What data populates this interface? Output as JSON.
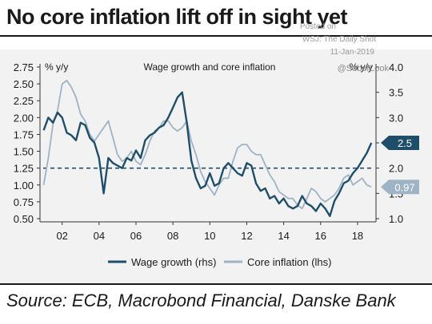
{
  "header": {
    "title": "No core inflation lift off in sight yet",
    "watermark_posted": "Posted on",
    "watermark_source": "WSJ: The Daily Shot",
    "watermark_date": "11-Jan-2019",
    "watermark_handle": "@SoberLook"
  },
  "footer": {
    "source": "Source: ECB, Macrobond Financial, Danske Bank"
  },
  "chart_data": {
    "type": "line",
    "title": "Wage growth and core inflation",
    "left_axis": {
      "label": "% y/y",
      "range": [
        0.5,
        2.75
      ],
      "ticks": [
        "0.50",
        "0.75",
        "1.00",
        "1.25",
        "1.50",
        "1.75",
        "2.00",
        "2.25",
        "2.50",
        "2.75"
      ],
      "tick_values": [
        0.5,
        0.75,
        1.0,
        1.25,
        1.5,
        1.75,
        2.0,
        2.25,
        2.5,
        2.75
      ]
    },
    "right_axis": {
      "label": "% y/y",
      "range": [
        1.0,
        4.0
      ],
      "ticks": [
        "1.0",
        "1.5",
        "2.0",
        "2.5",
        "3.0",
        "3.5",
        "4.0"
      ],
      "tick_values": [
        1.0,
        1.5,
        2.0,
        2.5,
        3.0,
        3.5,
        4.0
      ]
    },
    "x_axis": {
      "range": [
        2000.8,
        2019.0
      ],
      "ticks": [
        "02",
        "04",
        "06",
        "08",
        "10",
        "12",
        "14",
        "16",
        "18"
      ],
      "tick_values": [
        2002,
        2004,
        2006,
        2008,
        2010,
        2012,
        2014,
        2016,
        2018
      ]
    },
    "reference_line": {
      "axis": "right",
      "value": 2.0
    },
    "end_labels": [
      {
        "series": "Wage growth (rhs)",
        "text": "2.5",
        "value": 2.5,
        "axis": "right"
      },
      {
        "series": "Core inflation (lhs)",
        "text": "0.97",
        "value": 0.97,
        "axis": "left"
      }
    ],
    "legend_position": "bottom",
    "series": [
      {
        "name": "Wage growth (rhs)",
        "axis": "right",
        "color": "#1f4e6b",
        "x": [
          2001.0,
          2001.25,
          2001.5,
          2001.75,
          2002.0,
          2002.25,
          2002.5,
          2002.75,
          2003.0,
          2003.25,
          2003.5,
          2003.75,
          2004.0,
          2004.25,
          2004.5,
          2004.75,
          2005.0,
          2005.25,
          2005.5,
          2005.75,
          2006.0,
          2006.25,
          2006.5,
          2006.75,
          2007.0,
          2007.25,
          2007.5,
          2007.75,
          2008.0,
          2008.25,
          2008.5,
          2008.75,
          2009.0,
          2009.25,
          2009.5,
          2009.75,
          2010.0,
          2010.25,
          2010.5,
          2010.75,
          2011.0,
          2011.25,
          2011.5,
          2011.75,
          2012.0,
          2012.25,
          2012.5,
          2012.75,
          2013.0,
          2013.25,
          2013.5,
          2013.75,
          2014.0,
          2014.25,
          2014.5,
          2014.75,
          2015.0,
          2015.25,
          2015.5,
          2015.75,
          2016.0,
          2016.25,
          2016.5,
          2016.75,
          2017.0,
          2017.25,
          2017.5,
          2017.75,
          2018.0,
          2018.25,
          2018.5,
          2018.75
        ],
        "values": [
          2.75,
          3.0,
          2.9,
          3.1,
          3.0,
          2.7,
          2.65,
          2.55,
          2.9,
          2.85,
          2.6,
          2.5,
          2.2,
          1.5,
          2.2,
          2.1,
          2.05,
          2.0,
          2.2,
          2.15,
          2.35,
          2.2,
          2.55,
          2.65,
          2.7,
          2.8,
          2.85,
          3.0,
          3.2,
          3.4,
          3.5,
          2.9,
          2.15,
          1.8,
          1.6,
          1.65,
          1.9,
          1.65,
          1.7,
          2.0,
          2.1,
          2.0,
          1.9,
          1.85,
          2.1,
          2.05,
          1.7,
          1.55,
          1.6,
          1.4,
          1.45,
          1.3,
          1.4,
          1.25,
          1.2,
          1.25,
          1.45,
          1.3,
          1.25,
          1.15,
          1.3,
          1.2,
          1.05,
          1.35,
          1.5,
          1.7,
          1.75,
          1.9,
          2.0,
          2.15,
          2.3,
          2.5
        ]
      },
      {
        "name": "Core inflation (lhs)",
        "axis": "left",
        "color": "#9db3c6",
        "x": [
          2001.0,
          2001.25,
          2001.5,
          2001.75,
          2002.0,
          2002.25,
          2002.5,
          2002.75,
          2003.0,
          2003.25,
          2003.5,
          2003.75,
          2004.0,
          2004.25,
          2004.5,
          2004.75,
          2005.0,
          2005.25,
          2005.5,
          2005.75,
          2006.0,
          2006.25,
          2006.5,
          2006.75,
          2007.0,
          2007.25,
          2007.5,
          2007.75,
          2008.0,
          2008.25,
          2008.5,
          2008.75,
          2009.0,
          2009.25,
          2009.5,
          2009.75,
          2010.0,
          2010.25,
          2010.5,
          2010.75,
          2011.0,
          2011.25,
          2011.5,
          2011.75,
          2012.0,
          2012.25,
          2012.5,
          2012.75,
          2013.0,
          2013.25,
          2013.5,
          2013.75,
          2014.0,
          2014.25,
          2014.5,
          2014.75,
          2015.0,
          2015.25,
          2015.5,
          2015.75,
          2016.0,
          2016.25,
          2016.5,
          2016.75,
          2017.0,
          2017.25,
          2017.5,
          2017.75,
          2018.0,
          2018.25,
          2018.5,
          2018.75
        ],
        "values": [
          1.0,
          1.4,
          1.9,
          2.1,
          2.5,
          2.55,
          2.45,
          2.3,
          2.05,
          1.95,
          1.75,
          1.65,
          1.75,
          1.85,
          1.95,
          1.7,
          1.45,
          1.35,
          1.4,
          1.5,
          1.35,
          1.3,
          1.45,
          1.65,
          1.8,
          1.85,
          1.95,
          1.95,
          1.85,
          1.8,
          1.85,
          1.95,
          1.65,
          1.45,
          1.2,
          1.05,
          0.95,
          0.85,
          1.0,
          1.1,
          1.1,
          1.35,
          1.55,
          1.6,
          1.6,
          1.5,
          1.45,
          1.45,
          1.3,
          1.15,
          1.05,
          0.9,
          0.85,
          0.8,
          0.8,
          0.7,
          0.65,
          0.8,
          0.95,
          0.9,
          0.8,
          0.75,
          0.8,
          0.85,
          0.95,
          1.1,
          1.15,
          1.0,
          1.05,
          1.1,
          1.0,
          0.97
        ]
      }
    ]
  }
}
